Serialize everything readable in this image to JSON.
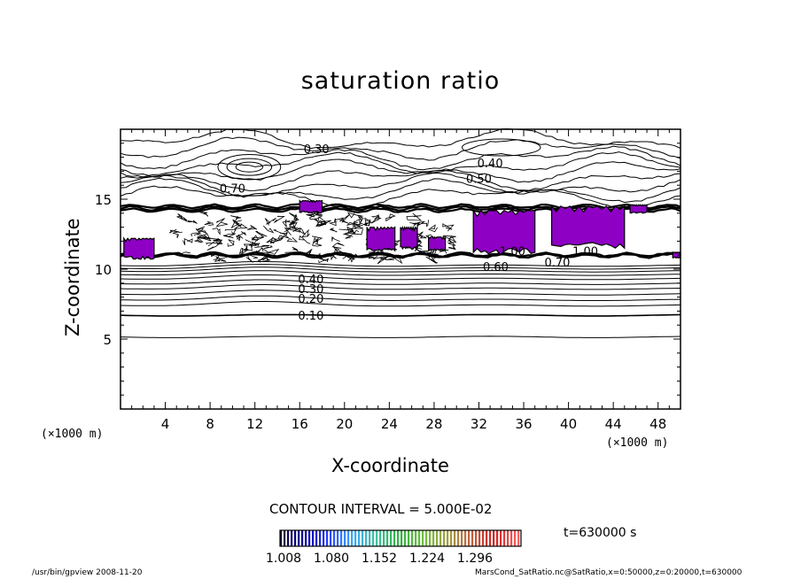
{
  "chart_data": {
    "type": "heatmap",
    "title": "saturation ratio",
    "xlabel": "X-coordinate",
    "ylabel": "Z-coordinate",
    "x_unit": "(×1000 m)",
    "y_unit": "(×1000 m)",
    "xlim": [
      0,
      50
    ],
    "ylim": [
      0,
      20
    ],
    "x_ticks": [
      4,
      8,
      12,
      16,
      20,
      24,
      28,
      32,
      36,
      40,
      44,
      48
    ],
    "y_ticks": [
      5,
      10,
      15
    ],
    "contour_interval_label": "CONTOUR INTERVAL = 5.000E-02",
    "contour_labels": [
      {
        "text": "0.30",
        "x": 17.5,
        "z": 18.6
      },
      {
        "text": "0.40",
        "x": 33.0,
        "z": 17.6
      },
      {
        "text": "0.50",
        "x": 32.0,
        "z": 16.5
      },
      {
        "text": "0.70",
        "x": 10.0,
        "z": 15.8
      },
      {
        "text": "0.40",
        "x": 17.0,
        "z": 9.3
      },
      {
        "text": "0.30",
        "x": 17.0,
        "z": 8.6
      },
      {
        "text": "0.20",
        "x": 17.0,
        "z": 7.9
      },
      {
        "text": "0.10",
        "x": 17.0,
        "z": 6.7
      },
      {
        "text": "1.00",
        "x": 35.0,
        "z": 11.3
      },
      {
        "text": "1.00",
        "x": 41.5,
        "z": 11.3
      },
      {
        "text": "0.70",
        "x": 39.0,
        "z": 10.5
      },
      {
        "text": "0.60",
        "x": 33.5,
        "z": 10.2
      }
    ],
    "supersaturated_regions": [
      {
        "x_range": [
          0.3,
          3.0
        ],
        "z_range": [
          10.7,
          12.2
        ]
      },
      {
        "x_range": [
          16.0,
          18.0
        ],
        "z_range": [
          14.0,
          14.9
        ]
      },
      {
        "x_range": [
          22.0,
          24.5
        ],
        "z_range": [
          11.3,
          13.0
        ]
      },
      {
        "x_range": [
          25.0,
          26.5
        ],
        "z_range": [
          11.4,
          13.0
        ]
      },
      {
        "x_range": [
          27.5,
          29.0
        ],
        "z_range": [
          11.3,
          12.3
        ]
      },
      {
        "x_range": [
          31.5,
          37.0
        ],
        "z_range": [
          11.0,
          14.2
        ]
      },
      {
        "x_range": [
          38.5,
          45.0
        ],
        "z_range": [
          11.5,
          14.5
        ]
      },
      {
        "x_range": [
          45.5,
          47.0
        ],
        "z_range": [
          14.0,
          14.6
        ]
      },
      {
        "x_range": [
          49.3,
          50.0
        ],
        "z_range": [
          10.8,
          11.2
        ]
      }
    ],
    "fill_color": "#8e00c4",
    "colorbar": {
      "tick_labels": [
        "1.008",
        "1.080",
        "1.152",
        "1.224",
        "1.296"
      ],
      "colors": [
        "#1a0a3a",
        "#0000a0",
        "#2a40ff",
        "#38a8ff",
        "#40c0a0",
        "#30b040",
        "#70c040",
        "#a0a040",
        "#c06040",
        "#d02020",
        "#ff6060"
      ]
    },
    "time_label": "t=630000 s"
  },
  "footer": {
    "left": "/usr/bin/gpview   2008-11-20",
    "right": "MarsCond_SatRatio.nc@SatRatio,x=0:50000,z=0:20000,t=630000"
  }
}
